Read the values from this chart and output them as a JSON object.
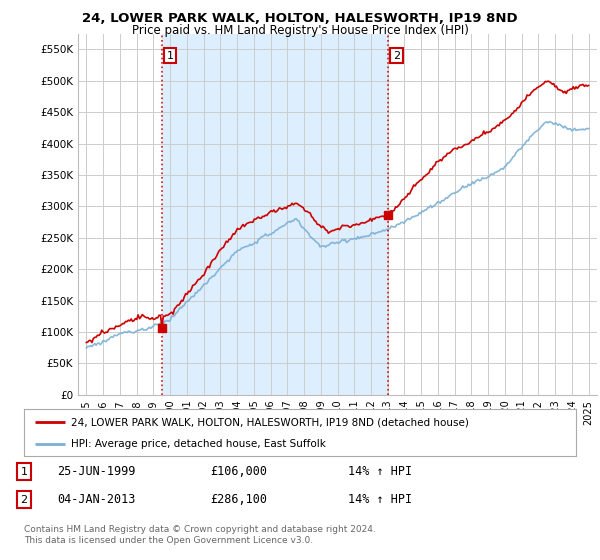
{
  "title": "24, LOWER PARK WALK, HOLTON, HALESWORTH, IP19 8ND",
  "subtitle": "Price paid vs. HM Land Registry's House Price Index (HPI)",
  "ylabel_ticks": [
    "£0",
    "£50K",
    "£100K",
    "£150K",
    "£200K",
    "£250K",
    "£300K",
    "£350K",
    "£400K",
    "£450K",
    "£500K",
    "£550K"
  ],
  "ytick_values": [
    0,
    50000,
    100000,
    150000,
    200000,
    250000,
    300000,
    350000,
    400000,
    450000,
    500000,
    550000
  ],
  "sale1": {
    "date_num": 1999.49,
    "price": 106000,
    "label": "1",
    "date_str": "25-JUN-1999",
    "price_str": "£106,000",
    "hpi_str": "14% ↑ HPI"
  },
  "sale2": {
    "date_num": 2013.01,
    "price": 286100,
    "label": "2",
    "date_str": "04-JAN-2013",
    "price_str": "£286,100",
    "hpi_str": "14% ↑ HPI"
  },
  "legend_line1": "24, LOWER PARK WALK, HOLTON, HALESWORTH, IP19 8ND (detached house)",
  "legend_line2": "HPI: Average price, detached house, East Suffolk",
  "footer": "Contains HM Land Registry data © Crown copyright and database right 2024.\nThis data is licensed under the Open Government Licence v3.0.",
  "line_color_red": "#cc0000",
  "line_color_blue": "#7bafd4",
  "shade_color": "#ddeeff",
  "vline_color": "#cc0000",
  "background_color": "#ffffff",
  "plot_bg_color": "#ffffff",
  "grid_color": "#cccccc",
  "xlim": [
    1994.5,
    2025.5
  ],
  "ylim": [
    0,
    575000
  ],
  "xtick_years": [
    1995,
    1996,
    1997,
    1998,
    1999,
    2000,
    2001,
    2002,
    2003,
    2004,
    2005,
    2006,
    2007,
    2008,
    2009,
    2010,
    2011,
    2012,
    2013,
    2014,
    2015,
    2016,
    2017,
    2018,
    2019,
    2020,
    2021,
    2022,
    2023,
    2024,
    2025
  ]
}
